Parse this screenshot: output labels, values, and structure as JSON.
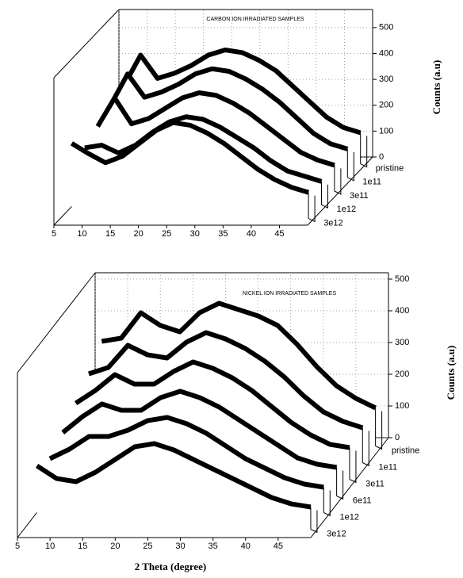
{
  "chart_data": [
    {
      "type": "waterfall",
      "title": "CARBON ION IRRADIATED SAMPLES",
      "y_label": "Counts (a.u)",
      "x": [
        7,
        10,
        13,
        16,
        19,
        22,
        25,
        28,
        31,
        34,
        37,
        40,
        43,
        46,
        49
      ],
      "xlim": [
        5,
        50
      ],
      "xticks": [
        5,
        10,
        15,
        20,
        25,
        30,
        35,
        40,
        45
      ],
      "ylim": [
        0,
        570
      ],
      "yticks": [
        0,
        100,
        200,
        300,
        400,
        500
      ],
      "grid": true,
      "series": [
        {
          "name": "pristine",
          "color": "#000000",
          "values": [
            300,
            420,
            330,
            350,
            380,
            420,
            440,
            430,
            400,
            360,
            300,
            240,
            180,
            140,
            120
          ]
        },
        {
          "name": "1e11",
          "color": "#000000",
          "values": [
            280,
            400,
            310,
            330,
            360,
            400,
            420,
            410,
            380,
            340,
            290,
            230,
            170,
            130,
            110
          ]
        },
        {
          "name": "3e11",
          "color": "#000000",
          "values": [
            250,
            360,
            260,
            280,
            320,
            360,
            380,
            370,
            340,
            300,
            250,
            200,
            150,
            120,
            100
          ]
        },
        {
          "name": "1e12",
          "color": "#000000",
          "values": [
            220,
            230,
            200,
            230,
            280,
            320,
            340,
            330,
            300,
            260,
            220,
            170,
            130,
            110,
            90
          ]
        },
        {
          "name": "3e12",
          "color": "#000000",
          "values": [
            290,
            250,
            215,
            240,
            290,
            340,
            370,
            360,
            330,
            290,
            240,
            190,
            150,
            120,
            100
          ]
        }
      ]
    },
    {
      "type": "waterfall",
      "title": "NICKEL ION IRRADIATED SAMPLES",
      "x_label": "2 Theta (degree)",
      "y_label": "Counts (a.u)",
      "x": [
        7,
        10,
        13,
        16,
        19,
        22,
        25,
        28,
        31,
        34,
        37,
        40,
        43,
        46,
        49
      ],
      "xlim": [
        5,
        50
      ],
      "xticks": [
        5,
        10,
        15,
        20,
        25,
        30,
        35,
        40,
        45
      ],
      "ylim": [
        0,
        520
      ],
      "yticks": [
        0,
        100,
        200,
        300,
        400,
        500
      ],
      "grid": true,
      "series": [
        {
          "name": "pristine",
          "color": "#000000",
          "values": [
            330,
            340,
            420,
            380,
            360,
            420,
            450,
            430,
            410,
            380,
            320,
            250,
            190,
            150,
            120
          ]
        },
        {
          "name": "1e11",
          "color": "#000000",
          "values": [
            280,
            300,
            370,
            340,
            330,
            380,
            410,
            390,
            360,
            320,
            270,
            210,
            160,
            130,
            110
          ]
        },
        {
          "name": "3e11",
          "color": "#000000",
          "values": [
            240,
            280,
            330,
            300,
            300,
            340,
            370,
            350,
            320,
            280,
            230,
            180,
            140,
            110,
            100
          ]
        },
        {
          "name": "6e11",
          "color": "#000000",
          "values": [
            200,
            250,
            290,
            270,
            270,
            310,
            330,
            310,
            280,
            240,
            200,
            160,
            120,
            100,
            90
          ]
        },
        {
          "name": "1e12",
          "color": "#000000",
          "values": [
            170,
            200,
            240,
            240,
            260,
            290,
            300,
            280,
            250,
            210,
            170,
            140,
            110,
            90,
            80
          ]
        },
        {
          "name": "3e12",
          "color": "#000000",
          "values": [
            200,
            160,
            150,
            180,
            220,
            260,
            270,
            250,
            220,
            190,
            160,
            130,
            100,
            80,
            70
          ]
        }
      ]
    }
  ]
}
